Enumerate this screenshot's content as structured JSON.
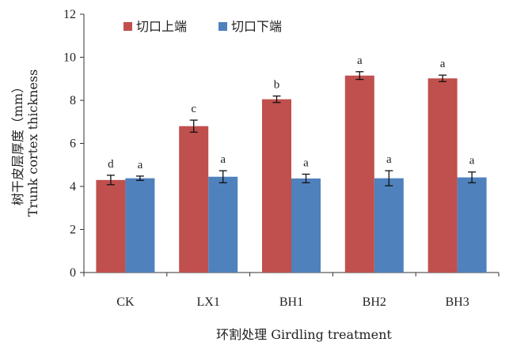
{
  "chart_data": {
    "type": "bar",
    "title": "",
    "xlabel": "环割处理 Girdling treatment",
    "ylabel_cn": "树干皮层厚度（mm）",
    "ylabel_en": "Trunk cortex thickness",
    "ylim": [
      0,
      12
    ],
    "yticks": [
      0,
      2,
      4,
      6,
      8,
      10,
      12
    ],
    "categories": [
      "CK",
      "LX1",
      "BH1",
      "BH2",
      "BH3"
    ],
    "series": [
      {
        "name": "切口上端",
        "color": "#C0504D",
        "values": [
          4.3,
          6.8,
          8.05,
          9.15,
          9.02
        ],
        "errors": [
          0.22,
          0.28,
          0.15,
          0.18,
          0.15
        ],
        "labels": [
          "d",
          "c",
          "b",
          "a",
          "a"
        ]
      },
      {
        "name": "切口下端",
        "color": "#4F81BD",
        "values": [
          4.38,
          4.45,
          4.37,
          4.38,
          4.42
        ],
        "errors": [
          0.1,
          0.28,
          0.2,
          0.35,
          0.25
        ],
        "labels": [
          "a",
          "a",
          "a",
          "a",
          "a"
        ]
      }
    ],
    "legend_position": "top-left",
    "grid": false
  }
}
